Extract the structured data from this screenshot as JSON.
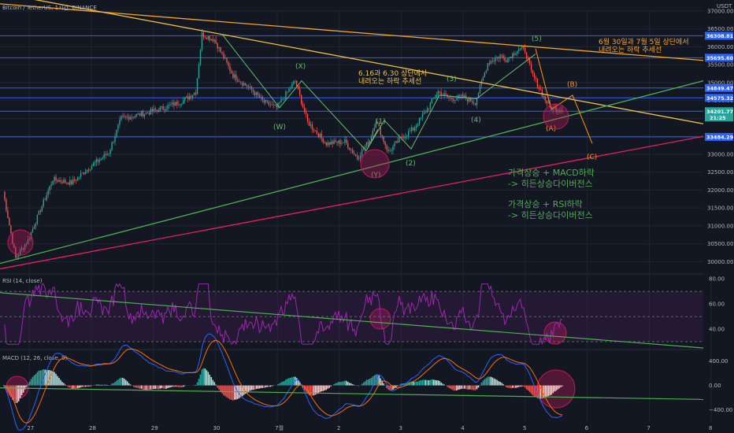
{
  "header": {
    "title": "Bitcoin / TetherUS, 1시간, BINANCE",
    "currency": "USDT"
  },
  "colors": {
    "background": "#131722",
    "up": "#26a69a",
    "down": "#ef5350",
    "grid": "#1f2433",
    "level_line": "#2962ff",
    "down_trend": "#f5a623",
    "down_trend_2": "#f0c040",
    "green_support": "#4caf50",
    "red_support": "#e91e63",
    "wave_green": "#66bb6a",
    "wave_orange": "#ff9800",
    "circle": "#c2185b",
    "rsi_line": "#9c27b0",
    "macd_line": "#2962ff",
    "signal_line": "#ff6d00",
    "note_green": "#4caf50",
    "note_yellow": "#f0c040",
    "note_orange": "#f5a623"
  },
  "chart_data": [
    {
      "type": "candlestick",
      "panel": "price",
      "title": "Bitcoin / TetherUS, 1시간, BINANCE",
      "ylabel": "USDT",
      "ylim": [
        29700,
        37000
      ],
      "y_ticks": [
        30000,
        30500,
        31000,
        31500,
        32000,
        32500,
        33000,
        33500,
        34000,
        34500,
        35000,
        35500,
        36000,
        36500,
        37000
      ],
      "y_tick_labels": [
        "30000.00",
        "30500.00",
        "31000.00",
        "31500.00",
        "32000.00",
        "32500.00",
        "33000.00",
        "33500.00",
        "34000.00",
        "34500.00",
        "35000.00",
        "35500.00",
        "36000.00",
        "36500.00",
        "37000.00"
      ],
      "x_ticks": [
        "27",
        "28",
        "29",
        "30",
        "7월",
        "2",
        "3",
        "4",
        "5",
        "6",
        "7",
        "8"
      ],
      "anchor_path": [
        [
          0,
          31950
        ],
        [
          2,
          30100
        ],
        [
          4,
          30600
        ],
        [
          8,
          32300
        ],
        [
          11,
          32200
        ],
        [
          14,
          32650
        ],
        [
          17,
          33050
        ],
        [
          19,
          34000
        ],
        [
          23,
          34150
        ],
        [
          26,
          34300
        ],
        [
          29,
          34500
        ],
        [
          31,
          34750
        ],
        [
          32,
          36350
        ],
        [
          34,
          36200
        ],
        [
          37,
          35200
        ],
        [
          40,
          34800
        ],
        [
          42,
          34450
        ],
        [
          44,
          34300
        ],
        [
          47,
          35050
        ],
        [
          49,
          33900
        ],
        [
          52,
          33300
        ],
        [
          55,
          33350
        ],
        [
          57,
          32900
        ],
        [
          59,
          33400
        ],
        [
          60,
          33950
        ],
        [
          62,
          33050
        ],
        [
          64,
          33450
        ],
        [
          66,
          33700
        ],
        [
          68,
          34200
        ],
        [
          70,
          34750
        ],
        [
          72,
          34550
        ],
        [
          74,
          34600
        ],
        [
          76,
          34450
        ],
        [
          78,
          35550
        ],
        [
          80,
          35750
        ],
        [
          81,
          35650
        ],
        [
          83,
          35950
        ],
        [
          84,
          35900
        ],
        [
          85,
          35300
        ],
        [
          87,
          34600
        ],
        [
          88,
          34300
        ],
        [
          90,
          34250
        ]
      ],
      "levels": [
        "36308.81",
        "35695.60",
        "34849.47",
        "34575.32",
        "34201.77",
        "33484.29"
      ],
      "last_price": "34201.77",
      "countdown": "21:25"
    },
    {
      "type": "line",
      "panel": "rsi",
      "title": "RSI (14, close)",
      "ylim": [
        25,
        82
      ],
      "y_ticks": [
        40,
        60,
        80
      ],
      "y_tick_labels": [
        "40.00",
        "60.00",
        "80.00"
      ],
      "band": [
        30,
        70
      ],
      "mid": 50
    },
    {
      "type": "bar",
      "panel": "macd",
      "title": "MACD (12, 26, close, 9)",
      "ylim": [
        -600,
        550
      ],
      "y_ticks": [
        400,
        0,
        -400
      ],
      "y_tick_labels": [
        "400.00",
        "0.00",
        "−400.00"
      ]
    }
  ],
  "annotations": {
    "waves": [
      "(W)",
      "(X)",
      "(Y)",
      "(1)",
      "(2)",
      "(3)",
      "(4)",
      "(5)",
      "(A)",
      "(B)",
      "(C)"
    ],
    "note_1": [
      "6.16과 6.30 상단에서",
      "내려오는 하락 추세선"
    ],
    "note_2": [
      "6월 30일과 7월 5일 상단에서",
      "내려오는 하락 추세선"
    ],
    "divergence_1": [
      "가격상승 + MACD하락",
      "-> 히든상승다이버전스"
    ],
    "divergence_2": [
      "가격상승 + RSI하락",
      "-> 히든상승다이버전스"
    ]
  }
}
